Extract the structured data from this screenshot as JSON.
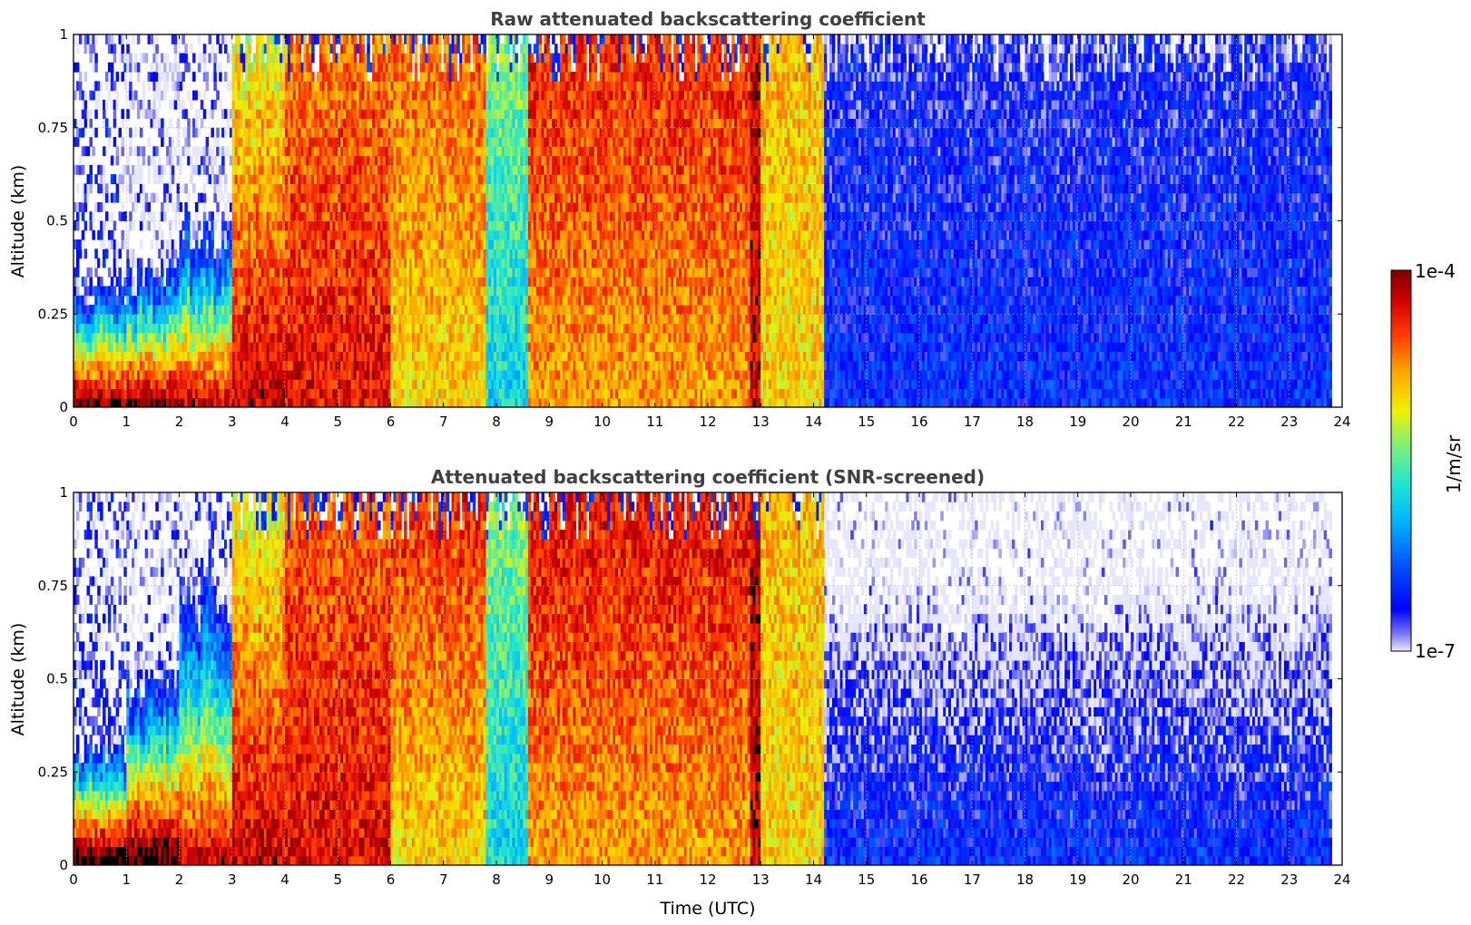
{
  "figure": {
    "colorbar": {
      "max_label": "1e-4",
      "min_label": "1e-7",
      "units_label": "1/m/sr",
      "range": [
        1e-07,
        0.0001
      ],
      "scale": "log",
      "colormap": "jet"
    }
  },
  "chart_data": [
    {
      "type": "heatmap",
      "title": "Raw attenuated backscattering coefficient",
      "xlabel": "",
      "ylabel": "Altitude (km)",
      "xlim": [
        0,
        24
      ],
      "ylim": [
        0,
        1
      ],
      "x_ticks": [
        "0",
        "1",
        "2",
        "3",
        "4",
        "5",
        "6",
        "7",
        "8",
        "9",
        "10",
        "11",
        "12",
        "13",
        "14",
        "15",
        "16",
        "17",
        "18",
        "19",
        "20",
        "21",
        "22",
        "23",
        "24"
      ],
      "y_ticks": [
        "0",
        "0.25",
        "0.5",
        "0.75",
        "1"
      ],
      "grid": true,
      "data_note": "log10 backscatter (1/m/sr) per time segment, approximate",
      "segments": [
        {
          "t_start": 0.0,
          "t_end": 1.0,
          "near_surface": -4.0,
          "top_height_km": 0.3,
          "aloft": -6.6
        },
        {
          "t_start": 1.0,
          "t_end": 2.0,
          "near_surface": -4.0,
          "top_height_km": 0.35,
          "aloft": -6.8
        },
        {
          "t_start": 2.0,
          "t_end": 3.0,
          "near_surface": -4.2,
          "top_height_km": 0.45,
          "aloft": -6.7
        },
        {
          "t_start": 3.0,
          "t_end": 4.0,
          "near_surface": -4.2,
          "top_height_km": 1.0,
          "aloft": -5.2
        },
        {
          "t_start": 4.0,
          "t_end": 6.0,
          "near_surface": -4.3,
          "top_height_km": 1.0,
          "aloft": -4.7
        },
        {
          "t_start": 6.0,
          "t_end": 7.8,
          "near_surface": -5.0,
          "top_height_km": 1.0,
          "aloft": -4.6
        },
        {
          "t_start": 7.8,
          "t_end": 8.6,
          "near_surface": -5.8,
          "top_height_km": 1.0,
          "aloft": -5.4
        },
        {
          "t_start": 8.6,
          "t_end": 12.8,
          "near_surface": -4.8,
          "top_height_km": 1.0,
          "aloft": -4.4
        },
        {
          "t_start": 12.8,
          "t_end": 13.0,
          "near_surface": -4.2,
          "top_height_km": 1.0,
          "aloft": -4.2
        },
        {
          "t_start": 13.0,
          "t_end": 14.2,
          "near_surface": -5.0,
          "top_height_km": 1.0,
          "aloft": -4.9
        },
        {
          "t_start": 14.2,
          "t_end": 23.8,
          "near_surface": -6.5,
          "top_height_km": 1.0,
          "aloft": -6.7
        }
      ]
    },
    {
      "type": "heatmap",
      "title": "Attenuated backscattering coefficient (SNR-screened)",
      "xlabel": "Time (UTC)",
      "ylabel": "Altitude (km)",
      "xlim": [
        0,
        24
      ],
      "ylim": [
        0,
        1
      ],
      "x_ticks": [
        "0",
        "1",
        "2",
        "3",
        "4",
        "5",
        "6",
        "7",
        "8",
        "9",
        "10",
        "11",
        "12",
        "13",
        "14",
        "15",
        "16",
        "17",
        "18",
        "19",
        "20",
        "21",
        "22",
        "23",
        "24"
      ],
      "y_ticks": [
        "0",
        "0.25",
        "0.5",
        "0.75",
        "1"
      ],
      "grid": true,
      "data_note": "log10 backscatter (1/m/sr) per time segment, approximate; values above colorbar max shown black",
      "segments": [
        {
          "t_start": 0.0,
          "t_end": 1.0,
          "near_surface": -3.8,
          "top_height_km": 0.3,
          "aloft": -6.6
        },
        {
          "t_start": 1.0,
          "t_end": 2.0,
          "near_surface": -3.8,
          "top_height_km": 0.47,
          "aloft": -6.8
        },
        {
          "t_start": 2.0,
          "t_end": 3.0,
          "near_surface": -4.2,
          "top_height_km": 0.72,
          "aloft": -6.7
        },
        {
          "t_start": 3.0,
          "t_end": 4.0,
          "near_surface": -4.2,
          "top_height_km": 1.0,
          "aloft": -5.2
        },
        {
          "t_start": 4.0,
          "t_end": 6.0,
          "near_surface": -4.3,
          "top_height_km": 1.0,
          "aloft": -4.6
        },
        {
          "t_start": 6.0,
          "t_end": 7.8,
          "near_surface": -5.0,
          "top_height_km": 1.0,
          "aloft": -4.4
        },
        {
          "t_start": 7.8,
          "t_end": 8.6,
          "near_surface": -5.8,
          "top_height_km": 1.0,
          "aloft": -5.4
        },
        {
          "t_start": 8.6,
          "t_end": 12.8,
          "near_surface": -4.8,
          "top_height_km": 1.0,
          "aloft": -4.3
        },
        {
          "t_start": 12.8,
          "t_end": 13.0,
          "near_surface": -4.2,
          "top_height_km": 1.0,
          "aloft": -4.2
        },
        {
          "t_start": 13.0,
          "t_end": 14.2,
          "near_surface": -5.0,
          "top_height_km": 1.0,
          "aloft": -4.9
        },
        {
          "t_start": 14.2,
          "t_end": 23.8,
          "near_surface": -6.5,
          "top_height_km": 0.65,
          "aloft": -7.0
        }
      ]
    }
  ]
}
